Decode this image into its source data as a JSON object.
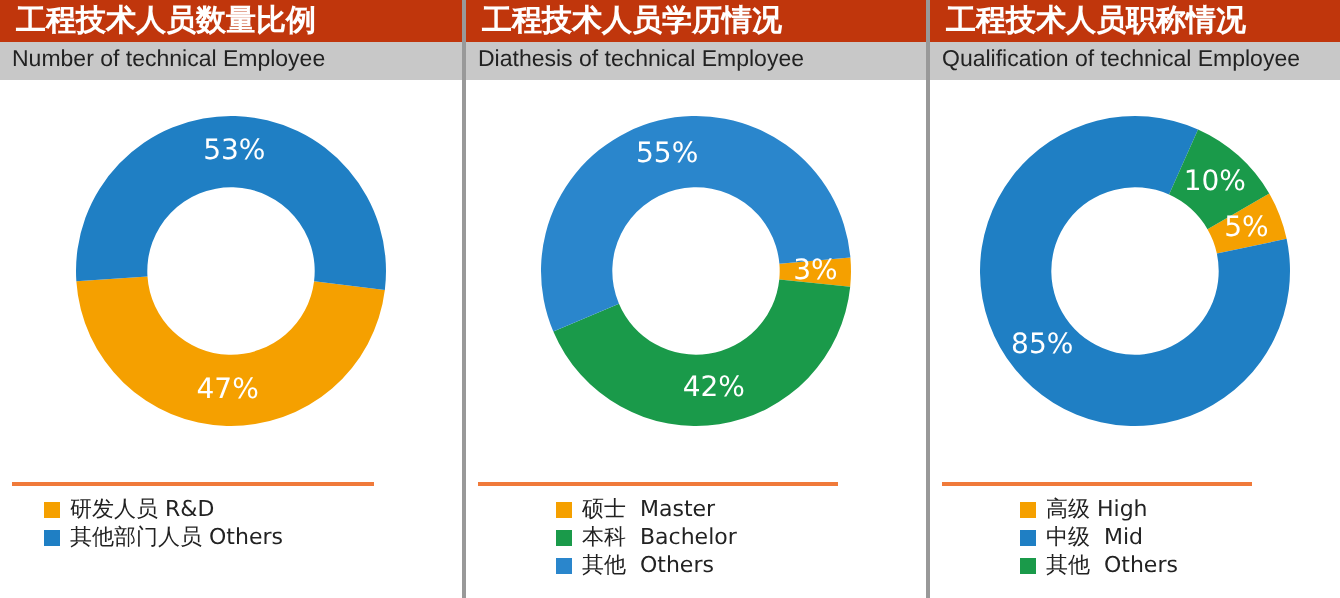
{
  "chart_data": [
    {
      "type": "donut",
      "title": "工程技术人员数量比例",
      "subtitle": "Number of technical Employee",
      "categories": [
        "研发人员 R&D",
        "其他部门人员 Others"
      ],
      "values": [
        47,
        53
      ],
      "colors": [
        "#f5a000",
        "#1f7fc4"
      ],
      "value_labels": [
        "47%",
        "53%"
      ],
      "legend": "bottom"
    },
    {
      "type": "donut",
      "title": "工程技术人员学历情况",
      "subtitle": "Diathesis of technical Employee",
      "categories": [
        "硕士  Master",
        "本科  Bachelor",
        "其他  Others"
      ],
      "values": [
        3,
        42,
        55
      ],
      "colors": [
        "#f5a000",
        "#1a9a4a",
        "#2a86cc"
      ],
      "value_labels": [
        "3%",
        "42%",
        "55%"
      ],
      "legend": "bottom"
    },
    {
      "type": "donut",
      "title": "工程技术人员职称情况",
      "subtitle": "Qualification of technical Employee",
      "categories": [
        "高级 High",
        "中级  Mid",
        "其他  Others"
      ],
      "values": [
        5,
        85,
        10
      ],
      "colors": [
        "#f5a000",
        "#1f7fc4",
        "#1a9a4a"
      ],
      "value_labels": [
        "5%",
        "85%",
        "10%"
      ],
      "legend": "bottom"
    }
  ]
}
